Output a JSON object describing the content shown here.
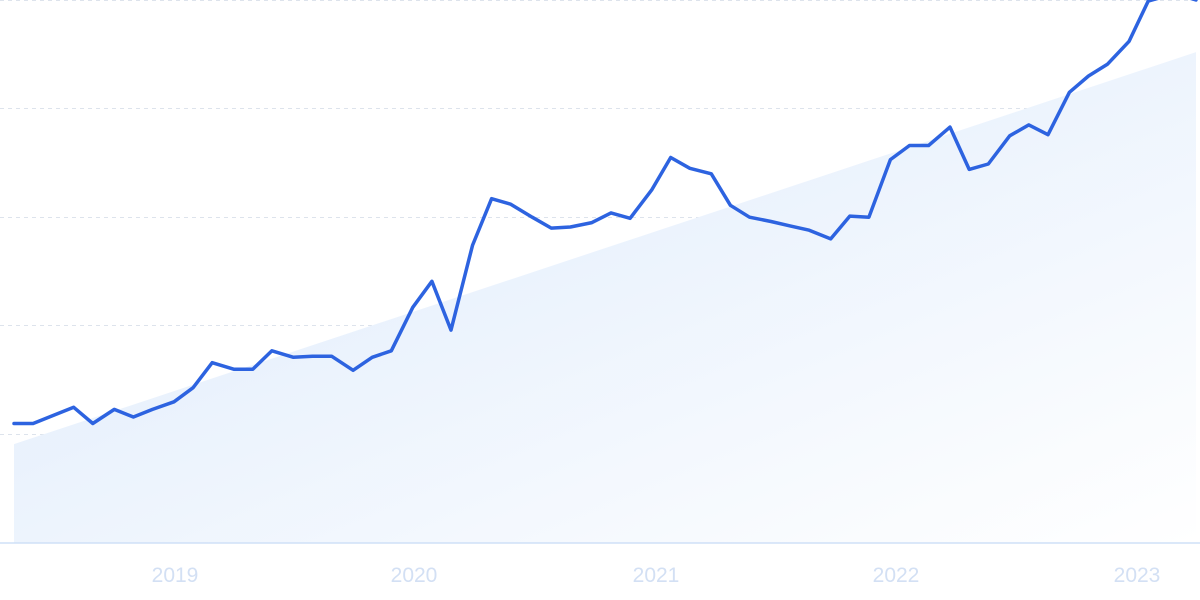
{
  "chart_data": {
    "type": "line",
    "title": "",
    "xlabel": "",
    "ylabel": "",
    "x_tick_labels": [
      "2019",
      "2020",
      "2021",
      "2022",
      "2023"
    ],
    "y_tick_labels": [],
    "xlim": [
      2018.3,
      2023.25
    ],
    "ylim": [
      0,
      500
    ],
    "grid": true,
    "grid_axis": "y",
    "legend": "none",
    "colors": {
      "line": "#2d63e0",
      "trend_fill_start": "#dbe9fb",
      "trend_fill_end": "#ffffff",
      "grid": "#dde3ec",
      "tick_label": "#d3e0f4"
    },
    "trend": {
      "x": [
        2018.3,
        2023.25
      ],
      "y": [
        91,
        452
      ]
    },
    "series": [
      {
        "x": [
          2018.3,
          2018.38,
          2018.47,
          2018.55,
          2018.63,
          2018.72,
          2018.8,
          2018.88,
          2018.97,
          2019.05,
          2019.13,
          2019.22,
          2019.3,
          2019.38,
          2019.47,
          2019.55,
          2019.63,
          2019.72,
          2019.8,
          2019.88,
          2019.97,
          2020.05,
          2020.13,
          2020.22,
          2020.3,
          2020.38,
          2020.47,
          2020.55,
          2020.63,
          2020.72,
          2020.8,
          2020.88,
          2020.97,
          2021.05,
          2021.13,
          2021.22,
          2021.3,
          2021.38,
          2021.47,
          2021.55,
          2021.63,
          2021.72,
          2021.8,
          2021.88,
          2021.97,
          2022.05,
          2022.13,
          2022.22,
          2022.3,
          2022.38,
          2022.47,
          2022.55,
          2022.63,
          2022.72,
          2022.8,
          2022.88,
          2022.97,
          2023.05,
          2023.13,
          2023.22,
          2023.25
        ],
        "y": [
          110,
          110,
          118,
          125,
          110,
          123,
          116,
          123,
          130,
          143,
          166,
          160,
          160,
          177,
          171,
          172,
          172,
          159,
          171,
          177,
          217,
          241,
          196,
          274,
          317,
          312,
          300,
          290,
          291,
          295,
          304,
          299,
          325,
          355,
          345,
          340,
          311,
          300,
          296,
          292,
          288,
          280,
          301,
          300,
          353,
          366,
          366,
          383,
          344,
          349,
          375,
          385,
          376,
          415,
          430,
          441,
          462,
          499,
          504,
          502,
          500
        ]
      }
    ]
  }
}
